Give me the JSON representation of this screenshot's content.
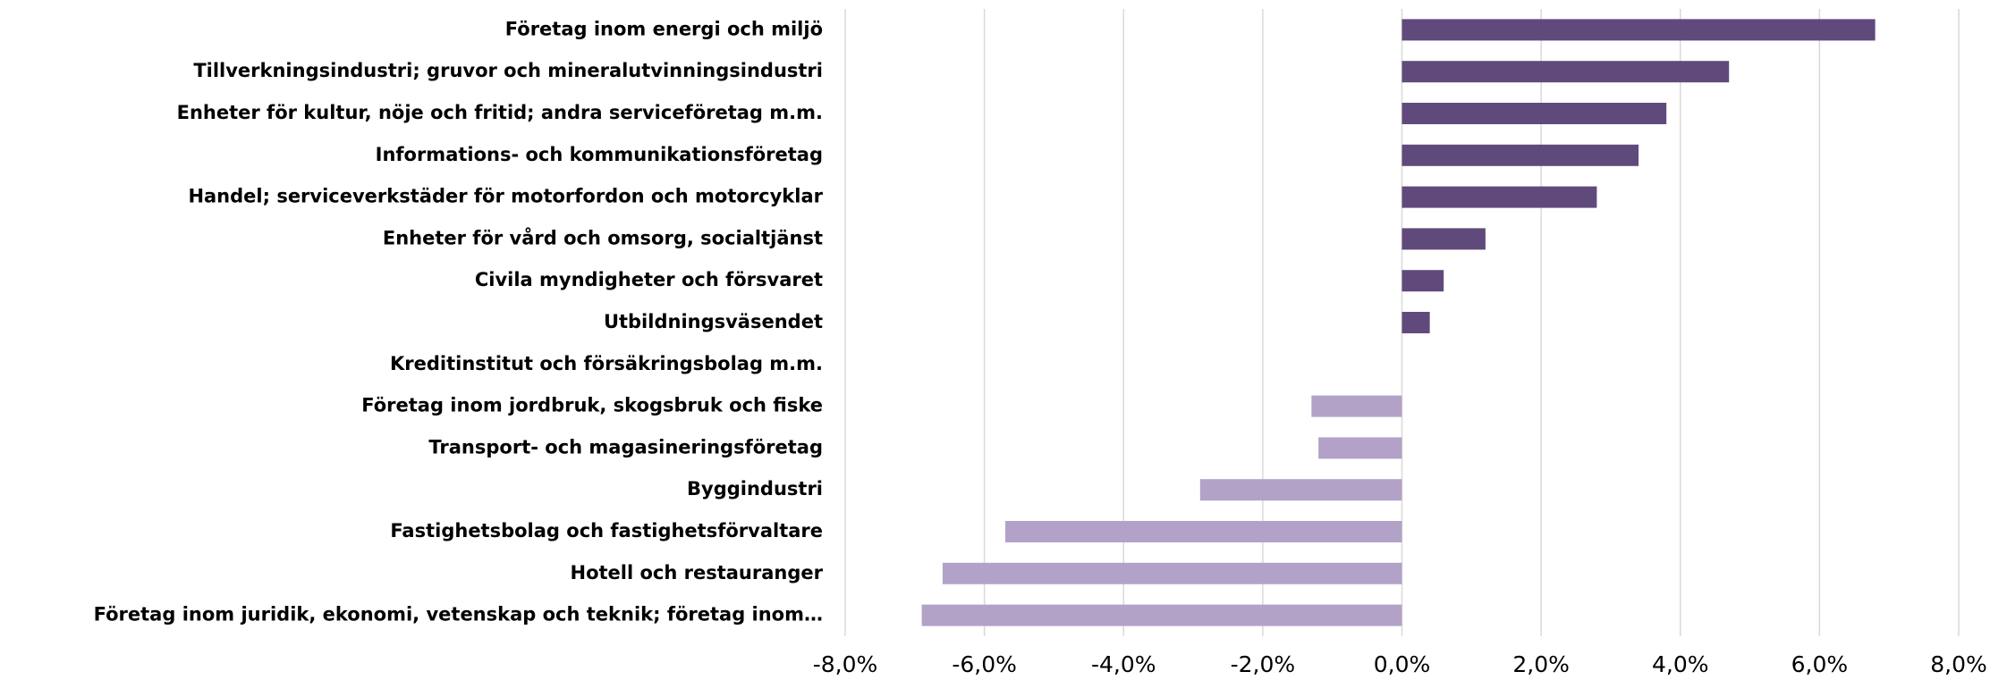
{
  "chart_data": {
    "type": "barh",
    "categories": [
      "Företag inom energi och miljö",
      "Tillverkningsindustri; gruvor och mineralutvinningsindustri",
      "Enheter för kultur, nöje och fritid; andra serviceföretag m.m.",
      "Informations- och kommunikationsföretag",
      "Handel; serviceverkstäder för motorfordon och motorcyklar",
      "Enheter för vård och omsorg, socialtjänst",
      "Civila myndigheter och försvaret",
      "Utbildningsväsendet",
      "Kreditinstitut och försäkringsbolag m.m.",
      "Företag inom jordbruk, skogsbruk och fiske",
      "Transport- och magasineringsföretag",
      "Byggindustri",
      "Fastighetsbolag och fastighetsförvaltare",
      "Hotell och restauranger",
      "Företag inom juridik, ekonomi, vetenskap och teknik; företag inom…"
    ],
    "values": [
      6.8,
      4.7,
      3.8,
      3.4,
      2.8,
      1.2,
      0.6,
      0.4,
      0,
      -1.3,
      -1.2,
      -2.9,
      -5.7,
      -6.6,
      -6.9
    ],
    "colors": [
      "#604a7b",
      "#604a7b",
      "#604a7b",
      "#604a7b",
      "#604a7b",
      "#604a7b",
      "#604a7b",
      "#604a7b",
      "#604a7b",
      "#b3a2c7",
      "#b3a2c7",
      "#b3a2c7",
      "#b3a2c7",
      "#b3a2c7",
      "#b3a2c7"
    ],
    "xlim": [
      -8,
      8
    ],
    "xticks": [
      {
        "value": -8,
        "label": "-8,0%"
      },
      {
        "value": -6,
        "label": "-6,0%"
      },
      {
        "value": -4,
        "label": "-4,0%"
      },
      {
        "value": -2,
        "label": "-2,0%"
      },
      {
        "value": 0,
        "label": "0,0%"
      },
      {
        "value": 2,
        "label": "2,0%"
      },
      {
        "value": 4,
        "label": "4,0%"
      },
      {
        "value": 6,
        "label": "6,0%"
      },
      {
        "value": 8,
        "label": "8,0%"
      }
    ],
    "grid": true
  }
}
